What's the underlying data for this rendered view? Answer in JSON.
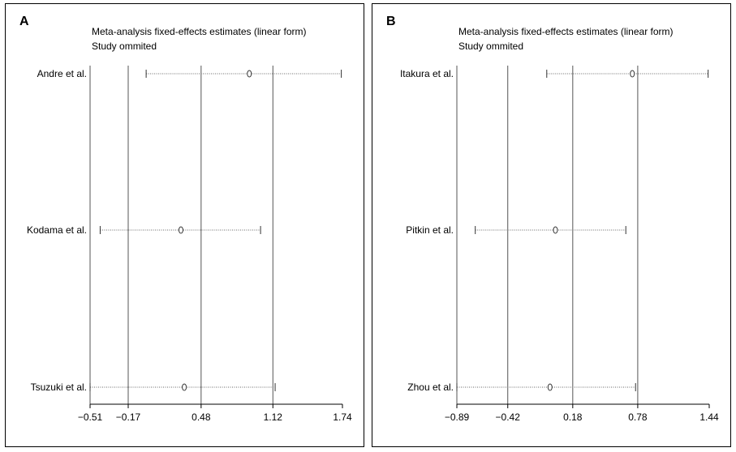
{
  "chart_data": [
    {
      "type": "forest",
      "panel_label": "A",
      "title": "Meta-analysis fixed-effects estimates (linear form)",
      "subtitle": "Study ommited",
      "xlim": [
        -0.51,
        1.74
      ],
      "xticks": [
        "−0.51",
        "−0.17",
        "0.48",
        "1.12",
        "1.74"
      ],
      "xtick_values": [
        -0.51,
        -0.17,
        0.48,
        1.12,
        1.74
      ],
      "reference_lines": [
        -0.17,
        0.48,
        1.12
      ],
      "studies": [
        {
          "name": "Andre et al.",
          "estimate": 0.91,
          "lower": -0.01,
          "upper": 1.73
        },
        {
          "name": "Kodama et al.",
          "estimate": 0.3,
          "lower": -0.42,
          "upper": 1.01
        },
        {
          "name": "Tsuzuki et al.",
          "estimate": 0.33,
          "lower": -0.51,
          "upper": 1.14
        }
      ]
    },
    {
      "type": "forest",
      "panel_label": "B",
      "title": "Meta-analysis fixed-effects estimates (linear form)",
      "subtitle": "Study ommited",
      "xlim": [
        -0.89,
        1.44
      ],
      "xticks": [
        "−0.89",
        "−0.42",
        "0.18",
        "0.78",
        "1.44"
      ],
      "xtick_values": [
        -0.89,
        -0.42,
        0.18,
        0.78,
        1.44
      ],
      "reference_lines": [
        -0.42,
        0.18,
        0.78
      ],
      "studies": [
        {
          "name": "Itakura et al.",
          "estimate": 0.73,
          "lower": -0.06,
          "upper": 1.43
        },
        {
          "name": "Pitkin et al.",
          "estimate": 0.02,
          "lower": -0.72,
          "upper": 0.67
        },
        {
          "name": "Zhou et al.",
          "estimate": -0.03,
          "lower": -0.89,
          "upper": 0.76
        }
      ]
    }
  ]
}
